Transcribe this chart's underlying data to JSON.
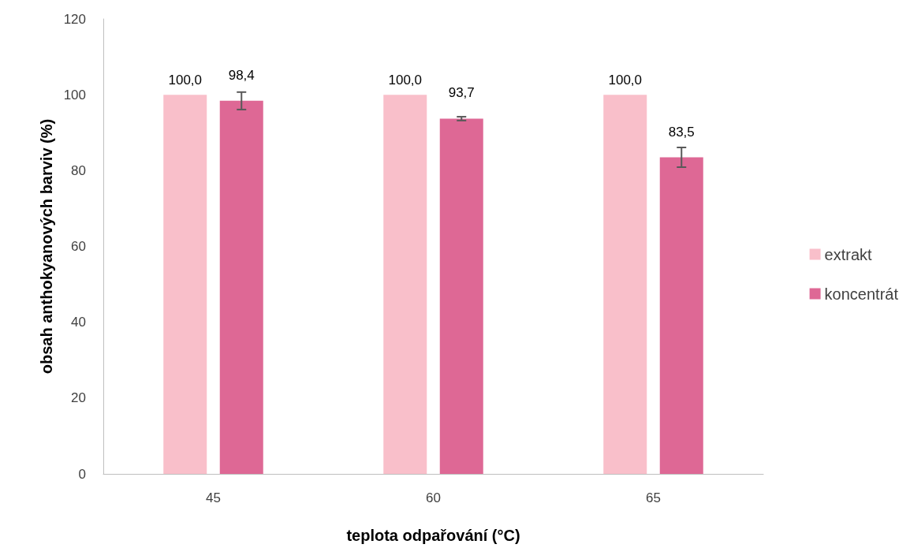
{
  "chart_data": {
    "type": "bar",
    "xlabel": "teplota odpařování (°C)",
    "ylabel": "obsah anthokyanových barviv (%)",
    "categories": [
      "45",
      "60",
      "65"
    ],
    "series": [
      {
        "name": "extrakt",
        "color": "#f9bfca",
        "values": [
          100.0,
          100.0,
          100.0
        ],
        "value_labels": [
          "100,0",
          "100,0",
          "100,0"
        ]
      },
      {
        "name": "koncentrát",
        "color": "#de6895",
        "values": [
          98.4,
          93.7,
          83.5
        ],
        "value_labels": [
          "98,4",
          "93,7",
          "83,5"
        ],
        "errors": [
          2.3,
          0.5,
          2.6
        ]
      }
    ],
    "ylim": [
      0,
      120
    ],
    "yticks": [
      0,
      20,
      40,
      60,
      80,
      100,
      120
    ],
    "grid": false,
    "legend": "right"
  }
}
